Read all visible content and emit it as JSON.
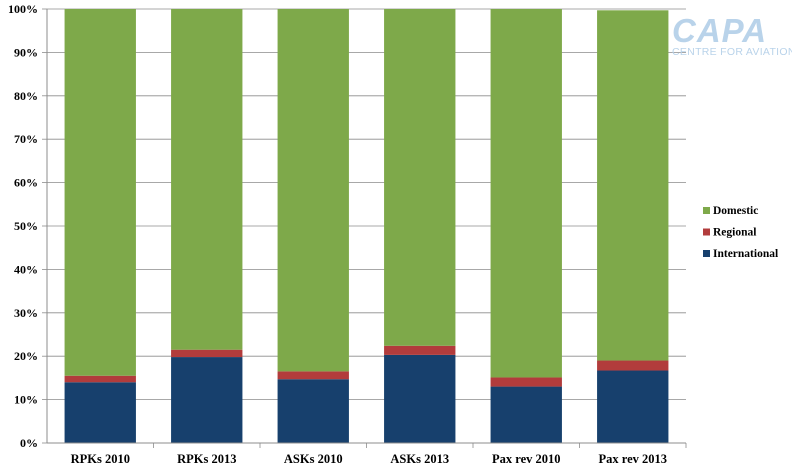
{
  "chart_data": {
    "type": "bar",
    "stacked": true,
    "categories": [
      "RPKs 2010",
      "RPKs 2013",
      "ASKs 2010",
      "ASKs 2013",
      "Pax rev 2010",
      "Pax rev 2013"
    ],
    "series": [
      {
        "name": "International",
        "values": [
          14,
          19.8,
          14.7,
          20.3,
          13,
          16.7
        ],
        "color": "#17406d"
      },
      {
        "name": "Regional",
        "values": [
          1.5,
          1.7,
          1.8,
          2.1,
          2.1,
          2.3
        ],
        "color": "#b23c3c"
      },
      {
        "name": "Domestic",
        "values": [
          84.5,
          78.5,
          83.5,
          77.6,
          84.9,
          80.7
        ],
        "color": "#7ea94a"
      }
    ],
    "y_ticks": [
      "0%",
      "10%",
      "20%",
      "30%",
      "40%",
      "50%",
      "60%",
      "70%",
      "80%",
      "90%",
      "100%"
    ],
    "ylim": [
      0,
      100
    ],
    "grid": true,
    "legend_position": "right",
    "legend_order": [
      "Domestic",
      "Regional",
      "International"
    ]
  },
  "logo": {
    "main_text": "CAPA",
    "sub_text": "CENTRE FOR AVIATION"
  }
}
